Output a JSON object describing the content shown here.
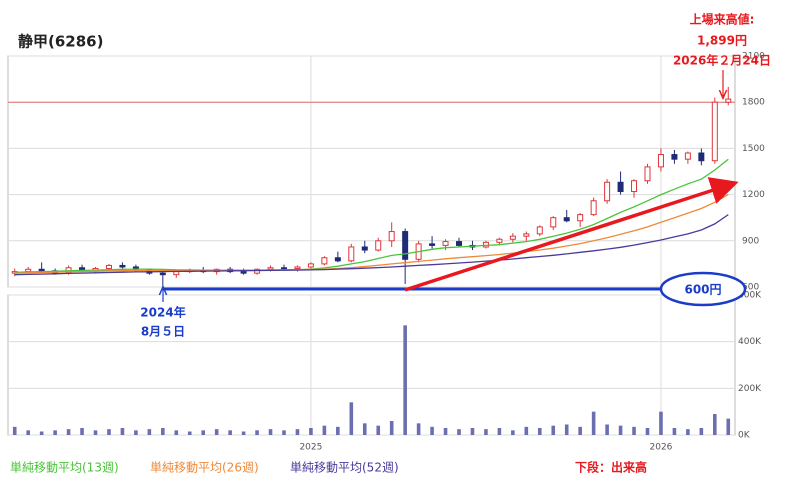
{
  "chart_data": {
    "type": "candlestick",
    "title": "静甲(6286)",
    "categories": [
      null,
      null,
      null,
      null,
      null,
      null,
      null,
      null,
      null,
      null,
      null,
      null,
      null,
      null,
      null,
      null,
      null,
      null,
      null,
      null,
      null,
      null,
      "2025",
      null,
      null,
      null,
      null,
      null,
      null,
      null,
      null,
      null,
      null,
      null,
      null,
      null,
      null,
      null,
      null,
      null,
      null,
      null,
      null,
      null,
      null,
      null,
      null,
      null,
      "2026",
      null,
      null,
      null,
      null,
      null
    ],
    "open": [
      690,
      700,
      715,
      705,
      690,
      725,
      710,
      720,
      740,
      730,
      715,
      690,
      680,
      700,
      710,
      700,
      715,
      700,
      690,
      715,
      725,
      720,
      730,
      750,
      790,
      770,
      860,
      840,
      900,
      960,
      780,
      880,
      870,
      895,
      870,
      860,
      890,
      910,
      930,
      945,
      990,
      1050,
      1030,
      1070,
      1160,
      1280,
      1220,
      1290,
      1380,
      1460,
      1430,
      1470,
      1420,
      1800
    ],
    "high": [
      720,
      730,
      760,
      720,
      740,
      745,
      730,
      750,
      760,
      745,
      720,
      700,
      710,
      720,
      730,
      720,
      730,
      720,
      720,
      740,
      745,
      740,
      760,
      800,
      830,
      880,
      900,
      920,
      1020,
      980,
      900,
      930,
      910,
      920,
      900,
      900,
      920,
      950,
      960,
      1000,
      1060,
      1100,
      1080,
      1180,
      1300,
      1350,
      1300,
      1400,
      1500,
      1490,
      1480,
      1500,
      1830,
      1899
    ],
    "low": [
      670,
      690,
      700,
      680,
      680,
      700,
      690,
      710,
      720,
      700,
      680,
      600,
      660,
      690,
      690,
      680,
      690,
      680,
      680,
      700,
      710,
      700,
      720,
      740,
      760,
      760,
      820,
      830,
      860,
      620,
      760,
      850,
      840,
      860,
      840,
      850,
      870,
      890,
      900,
      930,
      970,
      1020,
      990,
      1060,
      1140,
      1200,
      1180,
      1270,
      1350,
      1400,
      1400,
      1390,
      1400,
      1780
    ],
    "close": [
      700,
      715,
      705,
      690,
      725,
      710,
      720,
      740,
      730,
      715,
      690,
      680,
      700,
      710,
      700,
      715,
      700,
      690,
      715,
      725,
      720,
      730,
      750,
      790,
      770,
      860,
      840,
      900,
      960,
      780,
      880,
      870,
      895,
      870,
      860,
      890,
      910,
      930,
      945,
      990,
      1050,
      1030,
      1070,
      1160,
      1280,
      1220,
      1290,
      1380,
      1460,
      1430,
      1470,
      1420,
      1800,
      1820
    ],
    "up_color": "#e0353a",
    "down_color": "#1f2a78",
    "series": [
      {
        "name": "単純移動平均(13週)",
        "color": "#49c43a",
        "values": [
          695,
          698,
          700,
          702,
          705,
          708,
          710,
          712,
          715,
          716,
          716,
          714,
          712,
          711,
          710,
          709,
          708,
          707,
          707,
          708,
          710,
          712,
          716,
          724,
          735,
          750,
          765,
          785,
          805,
          815,
          830,
          845,
          855,
          860,
          865,
          870,
          875,
          885,
          895,
          910,
          930,
          950,
          975,
          1005,
          1045,
          1085,
          1120,
          1160,
          1200,
          1235,
          1270,
          1300,
          1360,
          1430
        ]
      },
      {
        "name": "単純移動平均(26週)",
        "color": "#ee8a3a",
        "values": [
          690,
          692,
          694,
          696,
          698,
          700,
          702,
          704,
          706,
          707,
          708,
          708,
          708,
          708,
          708,
          709,
          709,
          710,
          710,
          711,
          712,
          713,
          714,
          716,
          720,
          726,
          733,
          741,
          750,
          758,
          766,
          775,
          783,
          790,
          797,
          804,
          811,
          820,
          830,
          840,
          852,
          866,
          882,
          900,
          920,
          942,
          965,
          990,
          1020,
          1050,
          1080,
          1110,
          1150,
          1200
        ]
      },
      {
        "name": "単純移動平均(52週)",
        "color": "#4a3a9a",
        "values": [
          680,
          682,
          684,
          686,
          688,
          690,
          692,
          694,
          696,
          698,
          699,
          700,
          701,
          702,
          703,
          704,
          705,
          706,
          707,
          708,
          709,
          710,
          711,
          713,
          716,
          719,
          722,
          726,
          730,
          735,
          740,
          745,
          750,
          756,
          762,
          768,
          775,
          782,
          790,
          798,
          806,
          815,
          825,
          835,
          846,
          858,
          872,
          888,
          905,
          925,
          945,
          970,
          1010,
          1070
        ]
      }
    ],
    "ylim": [
      600,
      2100
    ],
    "yticks": [
      600,
      900,
      1200,
      1500,
      1800,
      2100
    ],
    "grid": true,
    "ref_line": 1800,
    "ref_color": "#e07070",
    "high_note": [
      "上場来高値:",
      "1,899円",
      "2026年２月24日"
    ],
    "low_note": [
      "2024年",
      "8月５日"
    ],
    "support_line": {
      "value": 600,
      "label": "600円"
    },
    "volume": {
      "label": "下段：出来高",
      "color": "#6b6fb0",
      "values": [
        35000,
        20000,
        15000,
        20000,
        25000,
        30000,
        20000,
        25000,
        30000,
        20000,
        25000,
        30000,
        20000,
        15000,
        20000,
        25000,
        20000,
        15000,
        20000,
        25000,
        20000,
        25000,
        30000,
        40000,
        35000,
        140000,
        50000,
        40000,
        60000,
        470000,
        50000,
        35000,
        30000,
        25000,
        30000,
        25000,
        30000,
        20000,
        35000,
        30000,
        40000,
        45000,
        35000,
        100000,
        45000,
        40000,
        35000,
        30000,
        100000,
        30000,
        25000,
        30000,
        90000,
        70000
      ],
      "ylim": [
        0,
        600000
      ],
      "yticks": [
        {
          "value": 0,
          "label": "0K"
        },
        {
          "value": 200000,
          "label": "200K"
        },
        {
          "value": 400000,
          "label": "400K"
        },
        {
          "value": 600000,
          "label": "600K"
        }
      ]
    }
  }
}
